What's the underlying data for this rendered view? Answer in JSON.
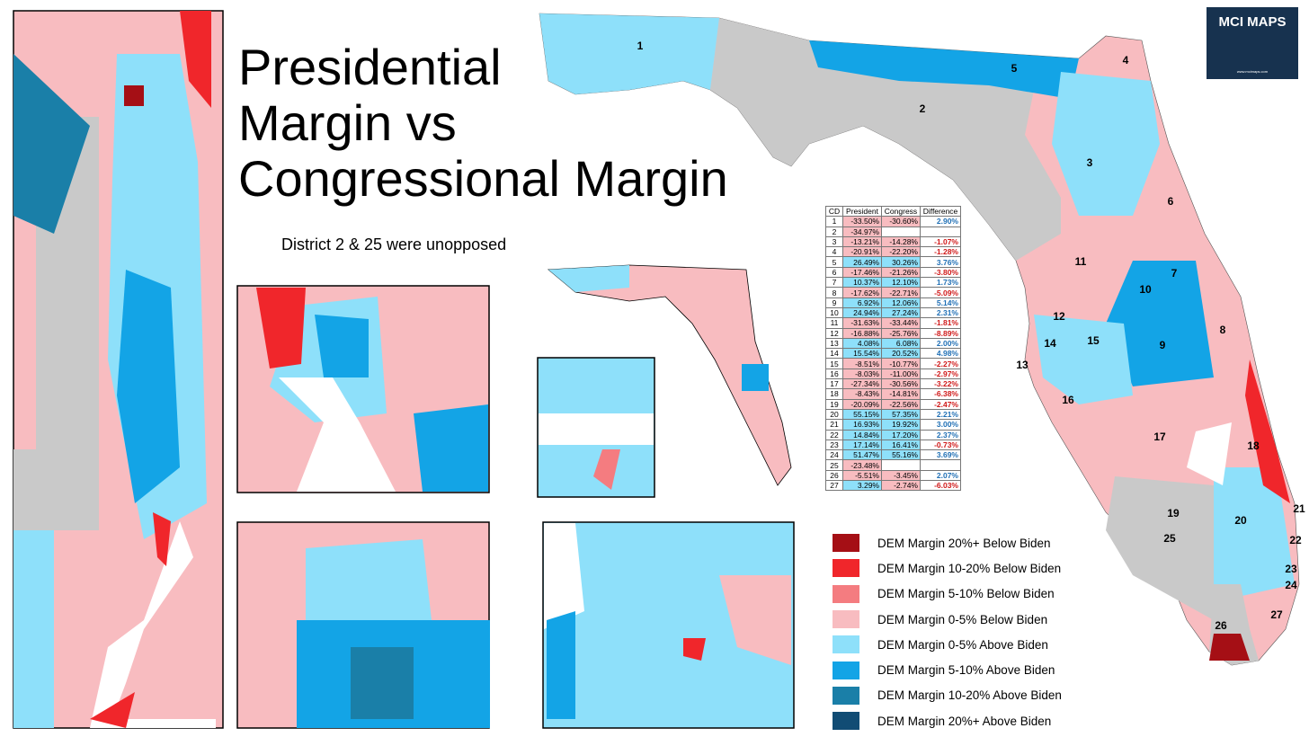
{
  "header": {
    "title_lines": [
      "Presidential",
      "Margin vs",
      "Congressional Margin"
    ],
    "subtitle": "District 2 & 25 were unopposed"
  },
  "logo": {
    "name": "MCI MAPS",
    "url": "www.mcimaps.com"
  },
  "table": {
    "columns": [
      "CD",
      "President",
      "Congress",
      "Difference"
    ],
    "rows": [
      [
        "1",
        "-33.50%",
        "-30.60%",
        "2.90%"
      ],
      [
        "2",
        "-34.97%"
      ],
      [
        "3",
        "-13.21%",
        "-14.28%",
        "-1.07%"
      ],
      [
        "4",
        "-20.91%",
        "-22.20%",
        "-1.28%"
      ],
      [
        "5",
        "26.49%",
        "30.26%",
        "3.76%"
      ],
      [
        "6",
        "-17.46%",
        "-21.26%",
        "-3.80%"
      ],
      [
        "7",
        "10.37%",
        "12.10%",
        "1.73%"
      ],
      [
        "8",
        "-17.62%",
        "-22.71%",
        "-5.09%"
      ],
      [
        "9",
        "6.92%",
        "12.06%",
        "5.14%"
      ],
      [
        "10",
        "24.94%",
        "27.24%",
        "2.31%"
      ],
      [
        "11",
        "-31.63%",
        "-33.44%",
        "-1.81%"
      ],
      [
        "12",
        "-16.88%",
        "-25.76%",
        "-8.89%"
      ],
      [
        "13",
        "4.08%",
        "6.08%",
        "2.00%"
      ],
      [
        "14",
        "15.54%",
        "20.52%",
        "4.98%"
      ],
      [
        "15",
        "-8.51%",
        "-10.77%",
        "-2.27%"
      ],
      [
        "16",
        "-8.03%",
        "-11.00%",
        "-2.97%"
      ],
      [
        "17",
        "-27.34%",
        "-30.56%",
        "-3.22%"
      ],
      [
        "18",
        "-8.43%",
        "-14.81%",
        "-6.38%"
      ],
      [
        "19",
        "-20.09%",
        "-22.56%",
        "-2.47%"
      ],
      [
        "20",
        "55.15%",
        "57.35%",
        "2.21%"
      ],
      [
        "21",
        "16.93%",
        "19.92%",
        "3.00%"
      ],
      [
        "22",
        "14.84%",
        "17.20%",
        "2.37%"
      ],
      [
        "23",
        "17.14%",
        "16.41%",
        "-0.73%"
      ],
      [
        "24",
        "51.47%",
        "55.16%",
        "3.69%"
      ],
      [
        "25",
        "-23.48%"
      ],
      [
        "26",
        "-5.51%",
        "-3.45%",
        "2.07%"
      ],
      [
        "27",
        "3.29%",
        "-2.74%",
        "-6.03%"
      ]
    ]
  },
  "legend": [
    {
      "label": "DEM Margin 20%+ Below Biden",
      "color": "#a50f15"
    },
    {
      "label": "DEM Margin 10-20% Below Biden",
      "color": "#f0262b"
    },
    {
      "label": "DEM Margin 5-10% Below Biden",
      "color": "#f47c80"
    },
    {
      "label": "DEM Margin 0-5% Below Biden",
      "color": "#f8bcc0"
    },
    {
      "label": "DEM Margin 0-5% Above Biden",
      "color": "#8ee0fa"
    },
    {
      "label": "DEM Margin 5-10% Above Biden",
      "color": "#13a4e6"
    },
    {
      "label": "DEM Margin 10-20% Above Biden",
      "color": "#1a7fa8"
    },
    {
      "label": "DEM Margin 20%+ Above Biden",
      "color": "#114c74"
    }
  ],
  "districts": [
    "1",
    "2",
    "3",
    "4",
    "5",
    "6",
    "7",
    "8",
    "9",
    "10",
    "11",
    "12",
    "13",
    "14",
    "15",
    "16",
    "17",
    "18",
    "19",
    "20",
    "21",
    "22",
    "23",
    "24",
    "25",
    "26",
    "27"
  ]
}
